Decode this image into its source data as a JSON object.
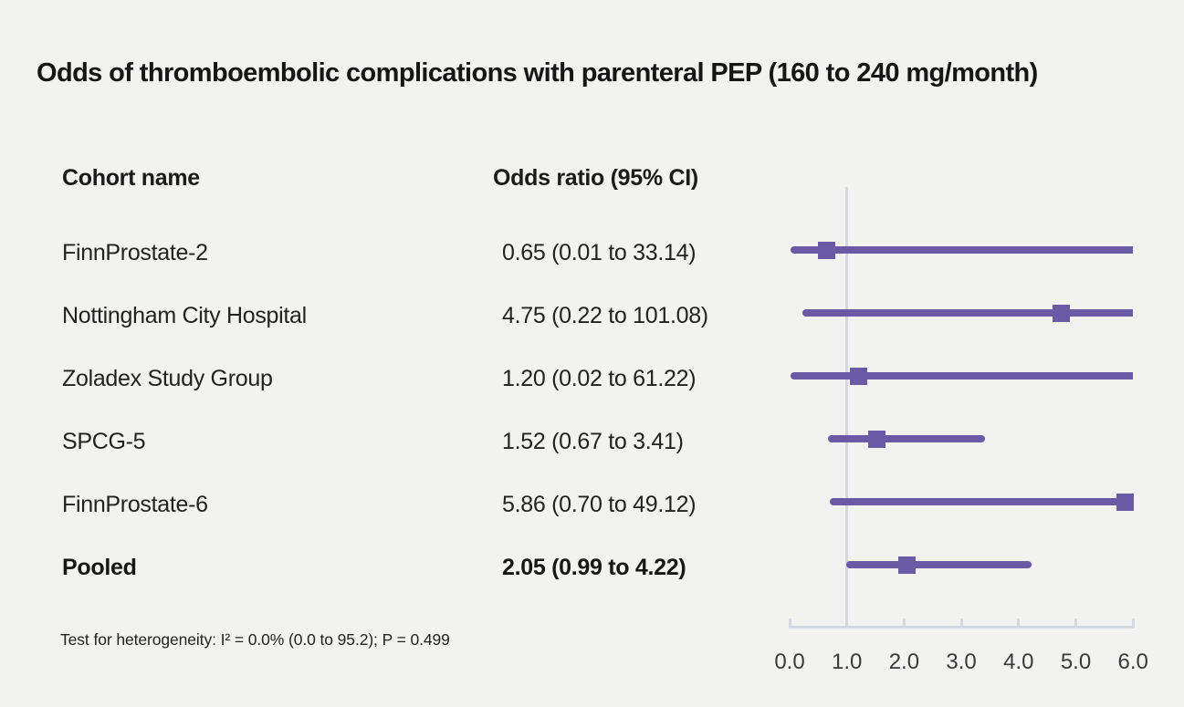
{
  "title": "Odds of thromboembolic complications with parenteral PEP (160 to 240 mg/month)",
  "table": {
    "cohort_header": "Cohort name",
    "odds_header": "Odds ratio (95% CI)"
  },
  "footnote": "Test for heterogeneity: I² = 0.0% (0.0 to 95.2); P = 0.499",
  "chart_data": {
    "type": "forest",
    "title": "Odds of thromboembolic complications with parenteral PEP (160 to 240 mg/month)",
    "columns": [
      "Cohort name",
      "Odds ratio (95% CI)"
    ],
    "x_axis": {
      "min": 0,
      "max": 6,
      "ticks": [
        {
          "value": 0,
          "label": "0.0"
        },
        {
          "value": 1,
          "label": "1.0"
        },
        {
          "value": 2,
          "label": "2.0"
        },
        {
          "value": 3,
          "label": "3.0"
        },
        {
          "value": 4,
          "label": "4.0"
        },
        {
          "value": 5,
          "label": "5.0"
        },
        {
          "value": 6,
          "label": "6.0"
        }
      ]
    },
    "reference_line": 1.0,
    "studies": [
      {
        "name": "FinnProstate-2",
        "odds_ratio": 0.65,
        "ci_low": 0.01,
        "ci_high": 33.14,
        "label": "0.65 (0.01 to 33.14)",
        "pooled": false
      },
      {
        "name": "Nottingham City Hospital",
        "odds_ratio": 4.75,
        "ci_low": 0.22,
        "ci_high": 101.08,
        "label": "4.75 (0.22 to 101.08)",
        "pooled": false
      },
      {
        "name": "Zoladex Study Group",
        "odds_ratio": 1.2,
        "ci_low": 0.02,
        "ci_high": 61.22,
        "label": "1.20 (0.02 to 61.22)",
        "pooled": false
      },
      {
        "name": "SPCG-5",
        "odds_ratio": 1.52,
        "ci_low": 0.67,
        "ci_high": 3.41,
        "label": "1.52 (0.67 to 3.41)",
        "pooled": false
      },
      {
        "name": "FinnProstate-6",
        "odds_ratio": 5.86,
        "ci_low": 0.7,
        "ci_high": 49.12,
        "label": "5.86 (0.70 to 49.12)",
        "pooled": false
      },
      {
        "name": "Pooled",
        "odds_ratio": 2.05,
        "ci_low": 0.99,
        "ci_high": 4.22,
        "label": "2.05 (0.99 to 4.22)",
        "pooled": true
      }
    ],
    "heterogeneity_note": "Test for heterogeneity: I² = 0.0% (0.0 to 95.2); P = 0.499",
    "colors": {
      "marker": "#6a59a5",
      "axis": "#d4d9e1",
      "background": "#f2f2f0",
      "text": "#222222"
    },
    "layout_hints": {
      "grid": false,
      "legend": "none",
      "scale": "linear"
    }
  }
}
